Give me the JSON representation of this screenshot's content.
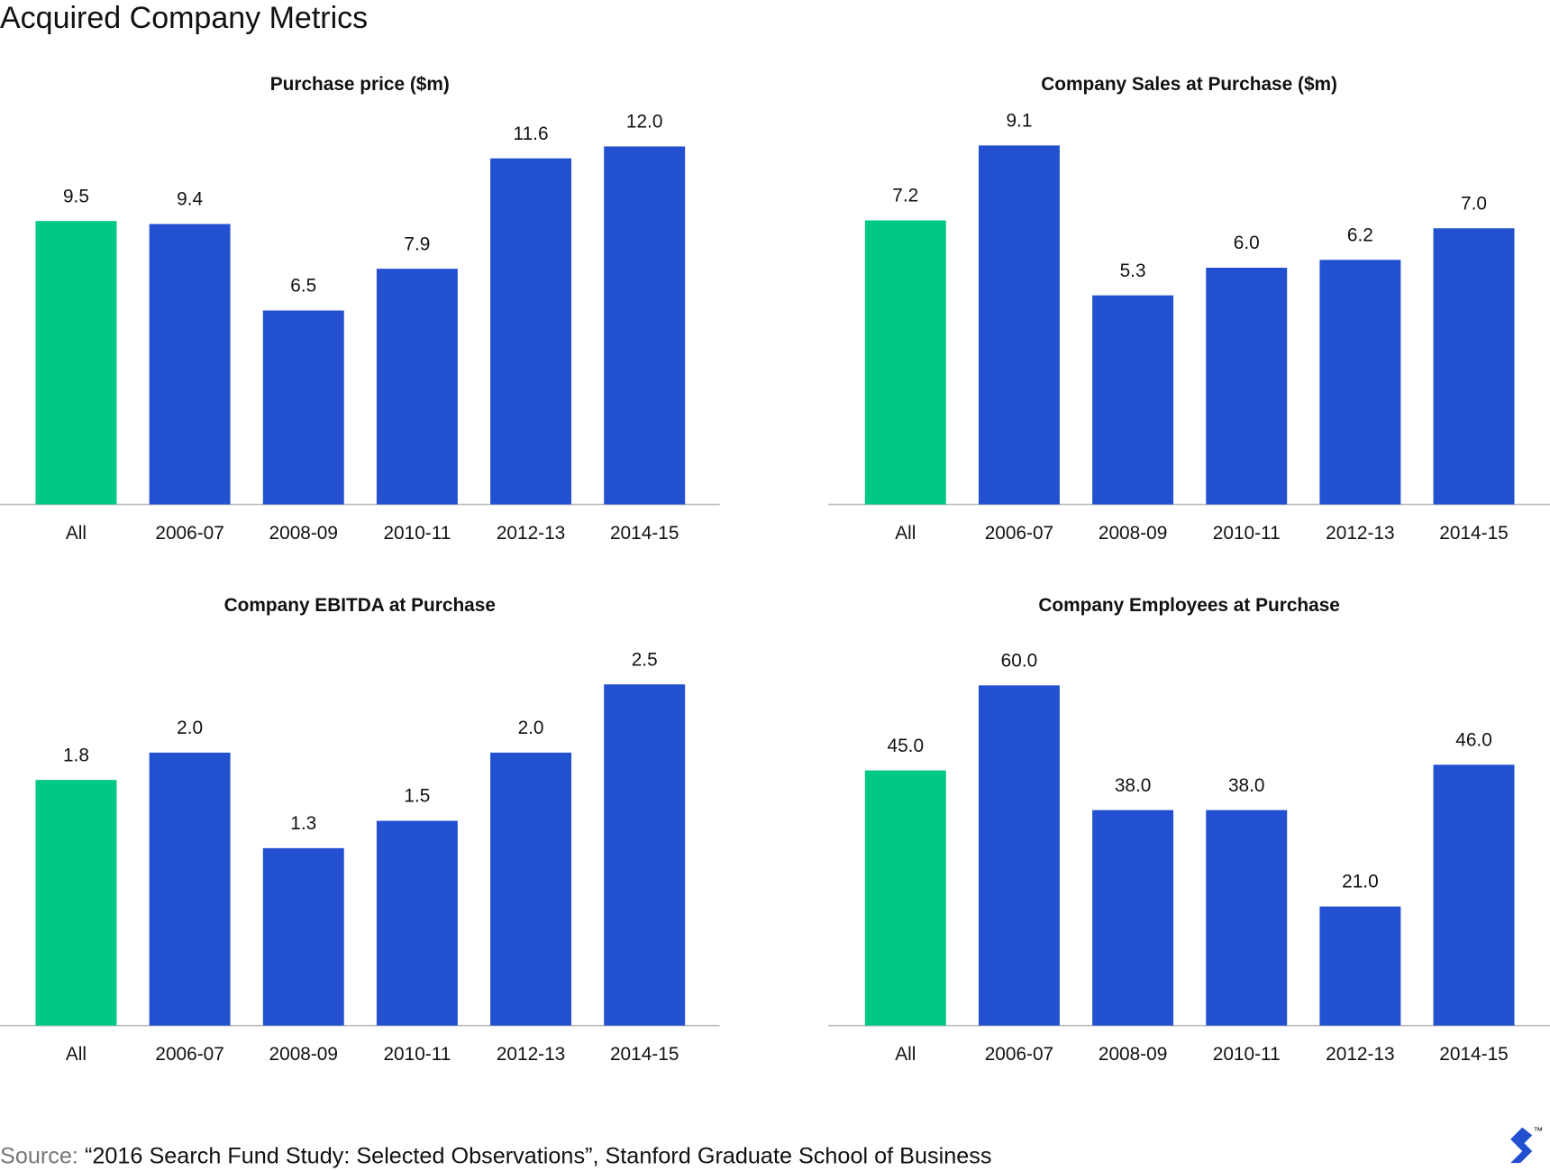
{
  "title": "Acquired Company Metrics",
  "source_label": "Source:",
  "source_text": "“2016 Search Fund Study: Selected Observations”, Stanford Graduate School of Business",
  "trademark": "™",
  "chart_data": [
    {
      "type": "bar",
      "title": "Purchase price ($m)",
      "categories": [
        "All",
        "2006-07",
        "2008-09",
        "2010-11",
        "2012-13",
        "2014-15"
      ],
      "values": [
        9.5,
        9.4,
        6.5,
        7.9,
        11.6,
        12.0
      ],
      "value_labels": [
        "9.5",
        "9.4",
        "6.5",
        "7.9",
        "11.6",
        "12.0"
      ],
      "colors": [
        "#00c886",
        "#2250d0",
        "#2250d0",
        "#2250d0",
        "#2250d0",
        "#2250d0"
      ]
    },
    {
      "type": "bar",
      "title": "Company Sales at Purchase ($m)",
      "categories": [
        "All",
        "2006-07",
        "2008-09",
        "2010-11",
        "2012-13",
        "2014-15"
      ],
      "values": [
        7.2,
        9.1,
        5.3,
        6.0,
        6.2,
        7.0
      ],
      "value_labels": [
        "7.2",
        "9.1",
        "5.3",
        "6.0",
        "6.2",
        "7.0"
      ],
      "colors": [
        "#00c886",
        "#2250d0",
        "#2250d0",
        "#2250d0",
        "#2250d0",
        "#2250d0"
      ]
    },
    {
      "type": "bar",
      "title": "Company EBITDA at Purchase",
      "categories": [
        "All",
        "2006-07",
        "2008-09",
        "2010-11",
        "2012-13",
        "2014-15"
      ],
      "values": [
        1.8,
        2.0,
        1.3,
        1.5,
        2.0,
        2.5
      ],
      "value_labels": [
        "1.8",
        "2.0",
        "1.3",
        "1.5",
        "2.0",
        "2.5"
      ],
      "colors": [
        "#00c886",
        "#2250d0",
        "#2250d0",
        "#2250d0",
        "#2250d0",
        "#2250d0"
      ]
    },
    {
      "type": "bar",
      "title": "Company Employees at Purchase",
      "categories": [
        "All",
        "2006-07",
        "2008-09",
        "2010-11",
        "2012-13",
        "2014-15"
      ],
      "values": [
        45.0,
        60.0,
        38.0,
        38.0,
        21.0,
        46.0
      ],
      "value_labels": [
        "45.0",
        "60.0",
        "38.0",
        "38.0",
        "21.0",
        "46.0"
      ],
      "colors": [
        "#00c886",
        "#2250d0",
        "#2250d0",
        "#2250d0",
        "#2250d0",
        "#2250d0"
      ]
    }
  ]
}
